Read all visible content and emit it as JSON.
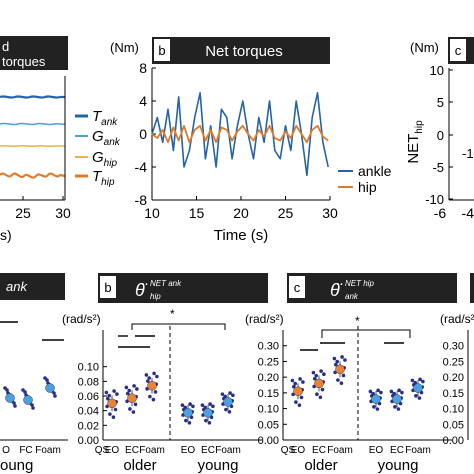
{
  "colors": {
    "blue": "#2563a8",
    "orange": "#e07b2a",
    "lightblue": "#4aa0d8",
    "lightorange": "#f0b052",
    "header": "#222222",
    "dot": "#26308a",
    "point_fill_blue": "#4aa0e0",
    "point_fill_orange": "#e8823a"
  },
  "chart_data": [
    {
      "type": "line",
      "panel": "a",
      "title_lines": [
        "d",
        "torques"
      ],
      "xticks": [
        "25",
        "30"
      ],
      "xlabel_partial": "s)",
      "legend": [
        "T_ank",
        "G_ank",
        "G_hip",
        "T_hip"
      ],
      "legend_labels": [
        {
          "main": "T",
          "sub": "ank"
        },
        {
          "main": "G",
          "sub": "ank"
        },
        {
          "main": "G",
          "sub": "hip"
        },
        {
          "main": "T",
          "sub": "hip"
        }
      ]
    },
    {
      "type": "line",
      "panel": "b",
      "title": "Net torques",
      "ylabel": "(Nm)",
      "xlabel": "Time (s)",
      "xlim": [
        10,
        30
      ],
      "ylim": [
        -8,
        8
      ],
      "xticks": [
        "10",
        "15",
        "20",
        "25",
        "30"
      ],
      "yticks": [
        "8",
        "4",
        "0",
        "-4",
        "-8"
      ],
      "series": [
        {
          "name": "ankle",
          "color": "#2563a8",
          "x": [
            10,
            10.6,
            11.2,
            11.8,
            12.4,
            13,
            13.6,
            14.2,
            14.8,
            15.4,
            16,
            16.6,
            17.2,
            17.8,
            18.4,
            19,
            19.6,
            20.2,
            20.8,
            21.4,
            22,
            22.6,
            23.2,
            23.8,
            24.4,
            25,
            25.6,
            26.2,
            26.8,
            27.4,
            28,
            28.6,
            29.2,
            29.8
          ],
          "y": [
            0,
            2,
            -1,
            3,
            -2,
            4.5,
            -4,
            -2,
            2,
            5,
            -3,
            1,
            -4,
            3,
            2,
            -3,
            1,
            4,
            0,
            -3,
            2,
            -1,
            4,
            -2,
            -3,
            1,
            -2,
            4,
            0,
            -5,
            2,
            5,
            -1,
            -4
          ]
        },
        {
          "name": "hip",
          "color": "#e07b2a",
          "x": [
            10,
            10.6,
            11.2,
            11.8,
            12.4,
            13,
            13.6,
            14.2,
            14.8,
            15.4,
            16,
            16.6,
            17.2,
            17.8,
            18.4,
            19,
            19.6,
            20.2,
            20.8,
            21.4,
            22,
            22.6,
            23.2,
            23.8,
            24.4,
            25,
            25.6,
            26.2,
            26.8,
            27.4,
            28,
            28.6,
            29.2,
            29.8
          ],
          "y": [
            0,
            -0.5,
            0.5,
            -1,
            0.8,
            -0.8,
            1,
            -1,
            0.5,
            1,
            -0.8,
            0.5,
            -1,
            0.8,
            0.5,
            -0.8,
            0.3,
            1,
            0,
            -0.8,
            0.5,
            -0.3,
            1,
            -0.5,
            -0.8,
            0.3,
            -0.5,
            1,
            0,
            -1,
            0.5,
            1,
            -0.3,
            -0.8
          ]
        }
      ],
      "legend_position": "bottom-right"
    },
    {
      "type": "scatter",
      "panel": "c",
      "ylabel_partial": "(Nm)",
      "ylabel_side": "NET_hip",
      "ylabel_main": "NET",
      "ylabel_sub": "hip",
      "yticks": [
        "10",
        "5",
        "0",
        "-5",
        "-10"
      ],
      "xticks": [
        "-6",
        "-4"
      ],
      "visible_fragment": "-1"
    },
    {
      "type": "scatter",
      "panel": "a-bottom",
      "title_partial": "ank",
      "xticks": [
        "O",
        "FC",
        "Foam"
      ],
      "group": "oung"
    },
    {
      "type": "scatter",
      "panel": "b-bottom",
      "title": "θ̈ hip NET ank",
      "title_symbol": "θ̈",
      "title_sup": "NET ank",
      "title_sub": "hip",
      "ylabel": "(rad/s²)",
      "ylim": [
        0.0,
        0.15
      ],
      "yticks": [
        "0.10",
        "0.08",
        "0.06",
        "0.04",
        "0.02",
        "0.00"
      ],
      "xticks": [
        "QS",
        "EO",
        "EC",
        "Foam",
        "EO",
        "EC",
        "Foam"
      ],
      "groups": [
        "older",
        "young"
      ],
      "annotation": "*",
      "means": {
        "older": [
          0.05,
          0.057,
          0.074
        ],
        "young": [
          0.037,
          0.037,
          0.052
        ]
      }
    },
    {
      "type": "scatter",
      "panel": "c-bottom",
      "title": "θ̈ ank NET hip",
      "title_symbol": "θ̈",
      "title_sup": "NET hip",
      "title_sub": "ank",
      "ylabel": "(rad/s²)",
      "ylim": [
        0.0,
        0.35
      ],
      "yticks": [
        "0.30",
        "0.25",
        "0.20",
        "0.15",
        "0.10",
        "0.05",
        "0.00"
      ],
      "xticks": [
        "QS",
        "EO",
        "EC",
        "Foam",
        "EO",
        "EC",
        "Foam"
      ],
      "groups": [
        "older",
        "young"
      ],
      "annotation": "*",
      "means": {
        "older": [
          0.155,
          0.18,
          0.225
        ],
        "young": [
          0.13,
          0.13,
          0.165
        ]
      }
    },
    {
      "type": "scatter",
      "panel": "d-bottom",
      "ylabel_partial": "(rad/s²)",
      "yticks": [
        "0.30",
        "0.25",
        "0.20",
        "0.15",
        "0.10",
        "0.05",
        "0.00"
      ]
    }
  ]
}
